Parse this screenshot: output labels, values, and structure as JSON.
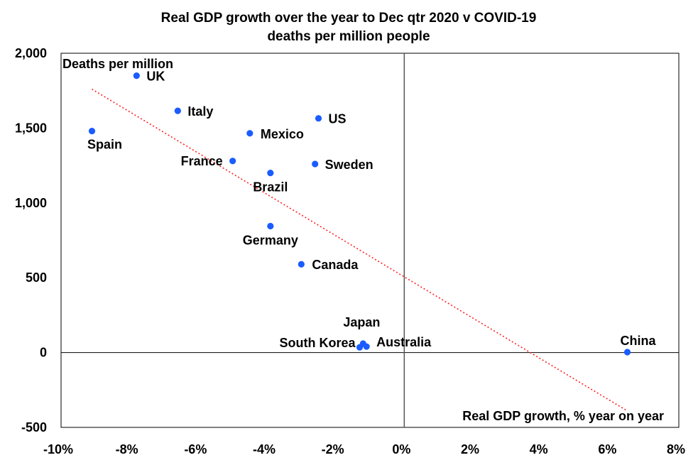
{
  "chart_data": {
    "type": "scatter",
    "title_line1": "Real GDP growth over the year to Dec qtr 2020 v COVID-19",
    "title_line2": "deaths per million people",
    "xlabel": "Real GDP growth, % year on year",
    "ylabel": "Deaths per million",
    "xlim": [
      -10,
      8
    ],
    "ylim": [
      -500,
      2000
    ],
    "x_ticks": [
      {
        "value": -10,
        "label": "-10%"
      },
      {
        "value": -8,
        "label": "-8%"
      },
      {
        "value": -6,
        "label": "-6%"
      },
      {
        "value": -4,
        "label": "-4%"
      },
      {
        "value": -2,
        "label": "-2%"
      },
      {
        "value": 0,
        "label": "0%"
      },
      {
        "value": 2,
        "label": "2%"
      },
      {
        "value": 4,
        "label": "4%"
      },
      {
        "value": 6,
        "label": "6%"
      },
      {
        "value": 8,
        "label": "8%"
      }
    ],
    "y_ticks": [
      {
        "value": 2000,
        "label": "2,000"
      },
      {
        "value": 1500,
        "label": "1,500"
      },
      {
        "value": 1000,
        "label": "1,000"
      },
      {
        "value": 500,
        "label": "500"
      },
      {
        "value": 0,
        "label": "0"
      },
      {
        "value": -500,
        "label": "-500"
      }
    ],
    "points": [
      {
        "name": "UK",
        "x": -7.8,
        "y": 1850
      },
      {
        "name": "Italy",
        "x": -6.6,
        "y": 1615
      },
      {
        "name": "Spain",
        "x": -9.1,
        "y": 1480
      },
      {
        "name": "Mexico",
        "x": -4.5,
        "y": 1465
      },
      {
        "name": "US",
        "x": -2.5,
        "y": 1565
      },
      {
        "name": "France",
        "x": -5.0,
        "y": 1280
      },
      {
        "name": "Brazil",
        "x": -3.9,
        "y": 1200
      },
      {
        "name": "Sweden",
        "x": -2.6,
        "y": 1260
      },
      {
        "name": "Germany",
        "x": -3.9,
        "y": 845
      },
      {
        "name": "Canada",
        "x": -3.0,
        "y": 590
      },
      {
        "name": "Japan",
        "x": -1.2,
        "y": 60
      },
      {
        "name": "South Korea",
        "x": -1.3,
        "y": 35
      },
      {
        "name": "Australia",
        "x": -1.1,
        "y": 40
      },
      {
        "name": "China",
        "x": 6.5,
        "y": 3
      }
    ],
    "trendline": {
      "x": [
        -9.1,
        6.5
      ],
      "y": [
        1760,
        -390
      ]
    },
    "colors": {
      "points": "#1a5cff",
      "trendline": "#ff2020",
      "axes": "#000000"
    }
  }
}
